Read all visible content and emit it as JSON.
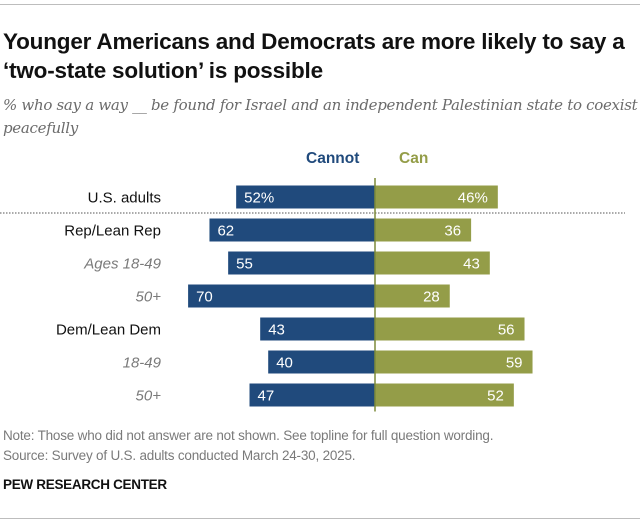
{
  "chart_data": {
    "type": "bar",
    "orientation": "horizontal-diverging",
    "title": "Younger Americans and Democrats are more likely to say a ‘two-state solution’ is possible",
    "subtitle": "% who say a way __ be found for Israel and an independent Palestinian state to coexist peacefully",
    "categories": [
      "U.S. adults",
      "Rep/Lean Rep",
      "Ages 18-49",
      "50+",
      "Dem/Lean Dem",
      "18-49",
      "50+"
    ],
    "category_styles": [
      "normal",
      "normal",
      "italic",
      "italic",
      "normal",
      "italic",
      "italic"
    ],
    "series": [
      {
        "name": "Cannot",
        "color": "#204a7c",
        "direction": "left",
        "values": [
          52,
          62,
          55,
          70,
          43,
          40,
          47
        ],
        "labels": [
          "52%",
          "62",
          "55",
          "70",
          "43",
          "40",
          "47"
        ]
      },
      {
        "name": "Can",
        "color": "#949d48",
        "direction": "right",
        "values": [
          46,
          36,
          43,
          28,
          56,
          59,
          52
        ],
        "labels": [
          "46%",
          "36",
          "43",
          "28",
          "56",
          "59",
          "52"
        ]
      }
    ],
    "separator_after_category": "U.S. adults",
    "axis": "center zero line",
    "grid": false,
    "legend_placement": "top-center"
  },
  "header": {
    "title": "Younger Americans and Democrats are more likely to say a ‘two-state solution’ is possible",
    "subtitle": "% who say a way __ be found for Israel and an independent Palestinian state to coexist peacefully"
  },
  "legend": {
    "cannot": "Cannot",
    "can": "Can"
  },
  "footer": {
    "note": "Note: Those who did not answer are not shown. See topline for full question wording.",
    "source": "Source: Survey of U.S. adults conducted March 24-30, 2025.",
    "brand": "PEW RESEARCH CENTER"
  }
}
